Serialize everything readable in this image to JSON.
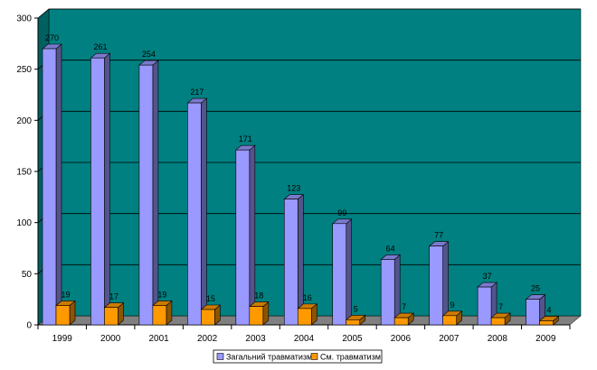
{
  "chart_data": {
    "type": "bar",
    "title": "",
    "xlabel": "",
    "ylabel": "",
    "categories": [
      "1999",
      "2000",
      "2001",
      "2002",
      "2003",
      "2004",
      "2005",
      "2006",
      "2007",
      "2008",
      "2009"
    ],
    "series": [
      {
        "name": "Загальний травматизм",
        "color": "#9999ff",
        "values": [
          270,
          261,
          254,
          217,
          171,
          123,
          99,
          64,
          77,
          37,
          25
        ]
      },
      {
        "name": "См. травматизм",
        "color": "#ff9900",
        "values": [
          19,
          17,
          19,
          15,
          18,
          16,
          5,
          7,
          9,
          7,
          4
        ]
      }
    ],
    "ylim": [
      0,
      300
    ],
    "yticks": [
      "0",
      "50",
      "100",
      "150",
      "200",
      "250",
      "300"
    ],
    "grid": true,
    "plot_background": "#008080",
    "legend_position": "bottom-center",
    "three_d": true
  }
}
